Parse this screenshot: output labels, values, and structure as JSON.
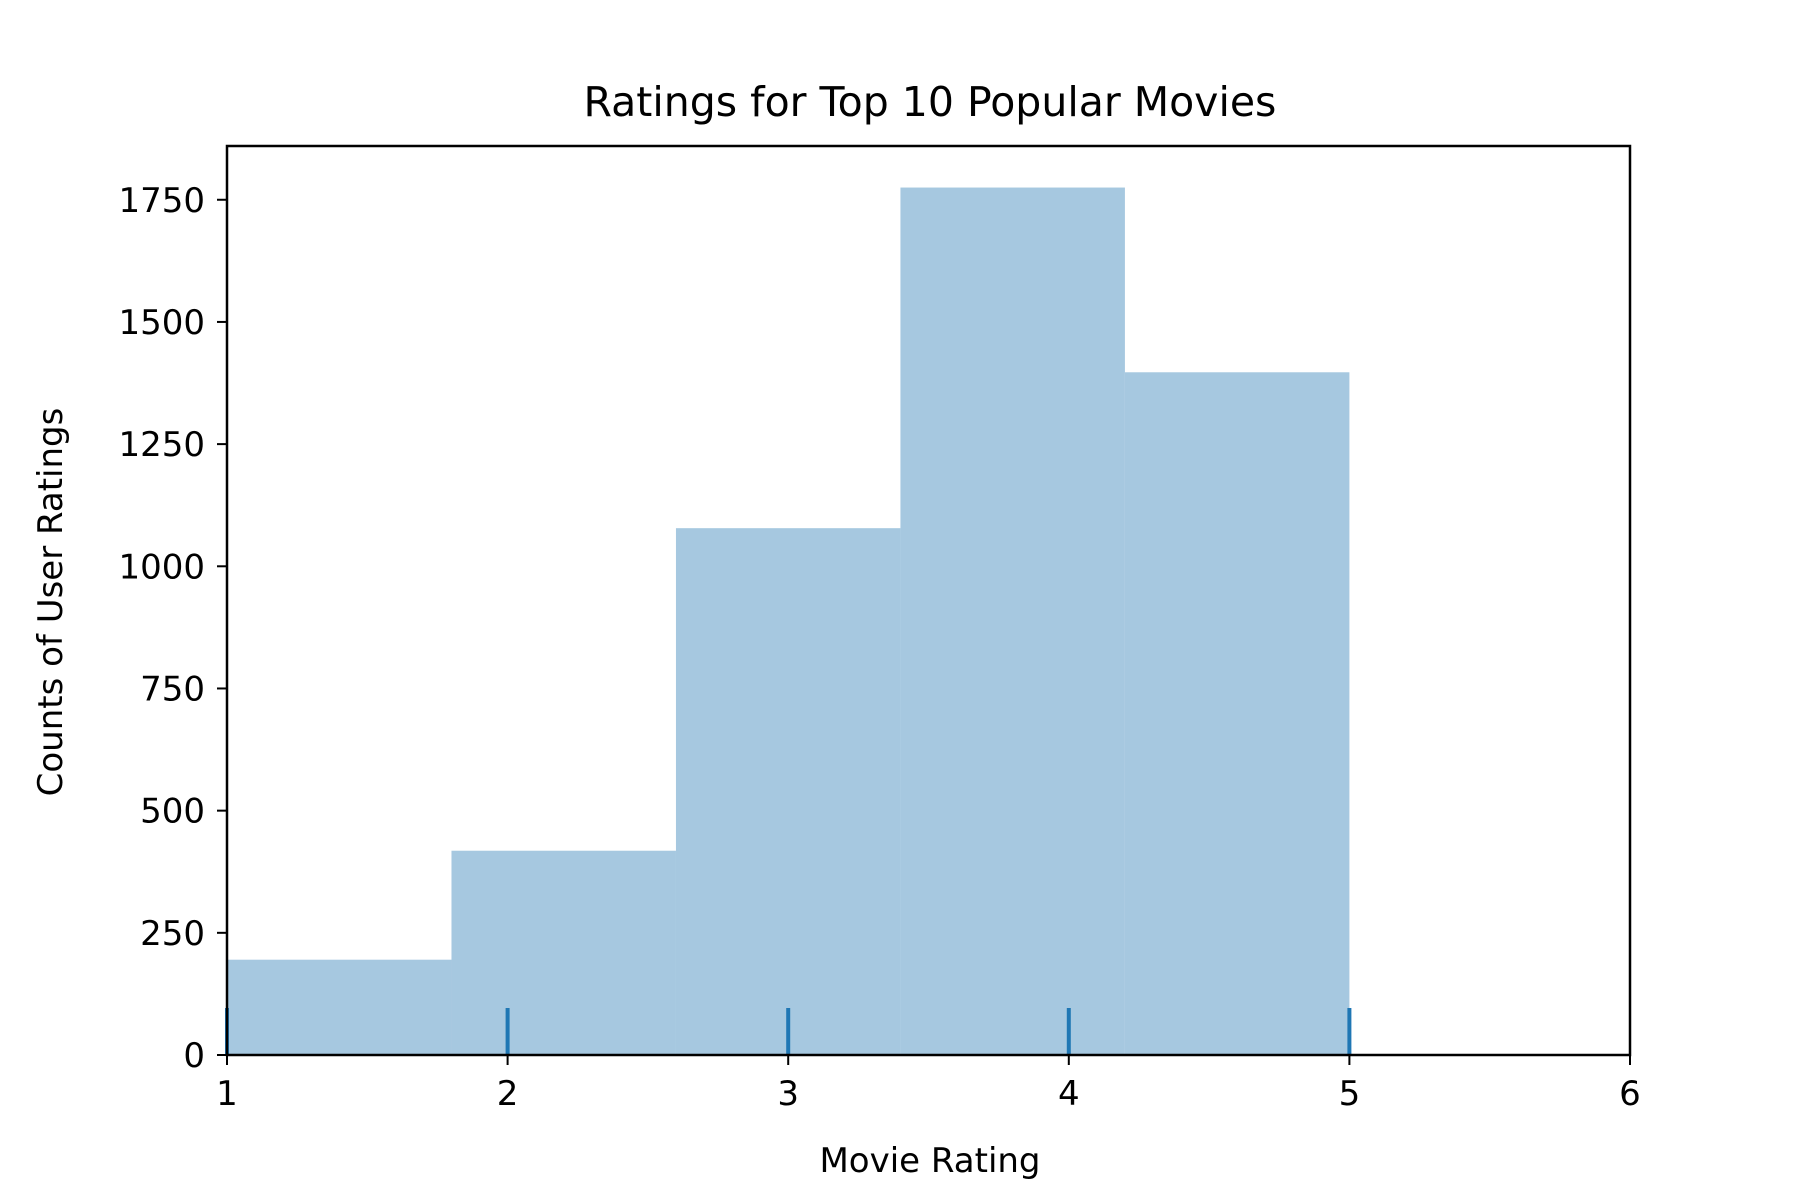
{
  "chart_data": {
    "type": "bar",
    "title": "Ratings for Top 10 Popular Movies",
    "xlabel": "Movie Rating",
    "ylabel": "Counts of User Ratings",
    "xlim": [
      1,
      6
    ],
    "ylim": [
      0,
      1860
    ],
    "xticks": [
      "1",
      "2",
      "3",
      "4",
      "5",
      "6"
    ],
    "yticks": [
      "0",
      "250",
      "500",
      "750",
      "1000",
      "1250",
      "1500",
      "1750"
    ],
    "bins": [
      {
        "x0": 1.0,
        "x1": 1.8,
        "value": 195
      },
      {
        "x0": 1.8,
        "x1": 2.6,
        "value": 418
      },
      {
        "x0": 2.6,
        "x1": 3.4,
        "value": 1078
      },
      {
        "x0": 3.4,
        "x1": 4.2,
        "value": 1775
      },
      {
        "x0": 4.2,
        "x1": 5.0,
        "value": 1397
      }
    ],
    "rug": [
      1,
      2,
      3,
      4,
      5
    ],
    "grid": false,
    "colors": {
      "bar": "#a6c8e0",
      "rug": "#1f77b4",
      "axis": "#000000"
    }
  }
}
